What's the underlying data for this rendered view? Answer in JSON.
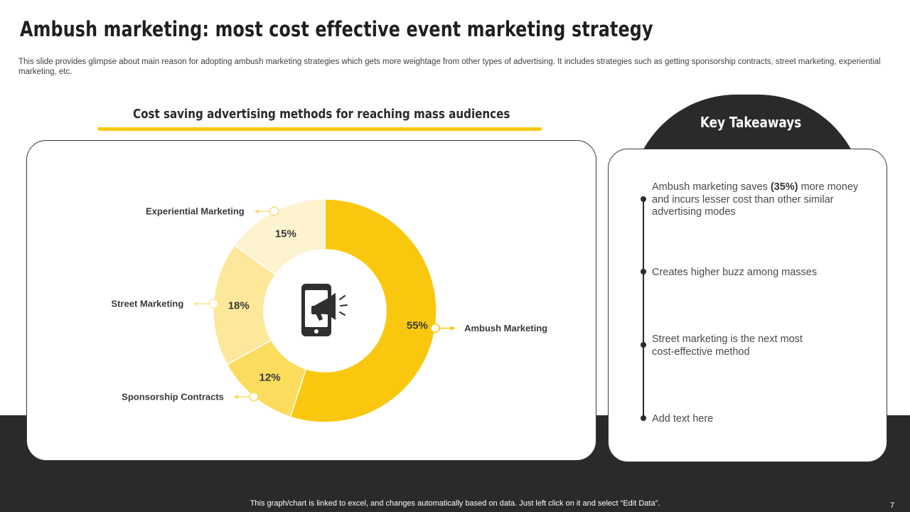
{
  "title": "Ambush marketing: most cost effective event marketing strategy",
  "subtitle": "This slide provides glimpse about main reason for adopting ambush marketing strategies which gets more weightage from other types of advertising. It includes strategies such as getting sponsorship contracts, street marketing, experiential marketing, etc.",
  "chart_heading": "Cost saving advertising methods for reaching mass audiences",
  "chart_data": {
    "type": "pie",
    "title": "Cost saving advertising methods for reaching mass audiences",
    "donut": true,
    "center_icon": "mobile-megaphone-icon",
    "slices": [
      {
        "label": "Ambush Marketing",
        "value": 55,
        "value_label": "55%",
        "color": "#f9c80e"
      },
      {
        "label": "Sponsorship  Contracts",
        "value": 12,
        "value_label": "12%",
        "color": "#fbdc5c"
      },
      {
        "label": "Street Marketing",
        "value": 18,
        "value_label": "18%",
        "color": "#fde79a"
      },
      {
        "label": "Experiential Marketing",
        "value": 15,
        "value_label": "15%",
        "color": "#fef3cf"
      }
    ]
  },
  "takeaways": {
    "title": "Key Takeaways",
    "items": [
      {
        "pre": "Ambush marketing saves ",
        "bold": "(35%)",
        "post": " more money and incurs lesser cost than other similar advertising modes"
      },
      {
        "pre": "Creates higher buzz among masses",
        "bold": "",
        "post": ""
      },
      {
        "pre": "Street marketing is the next most cost-effective method",
        "bold": "",
        "post": ""
      },
      {
        "pre": "Add text here",
        "bold": "",
        "post": ""
      }
    ]
  },
  "footer_note": "This graph/chart is linked to excel,  and changes automatically based on data. Just left click on it and select “Edit Data”.",
  "page_number": "7",
  "colors": {
    "accent": "#f9c80e",
    "dark": "#2a2a2c"
  }
}
